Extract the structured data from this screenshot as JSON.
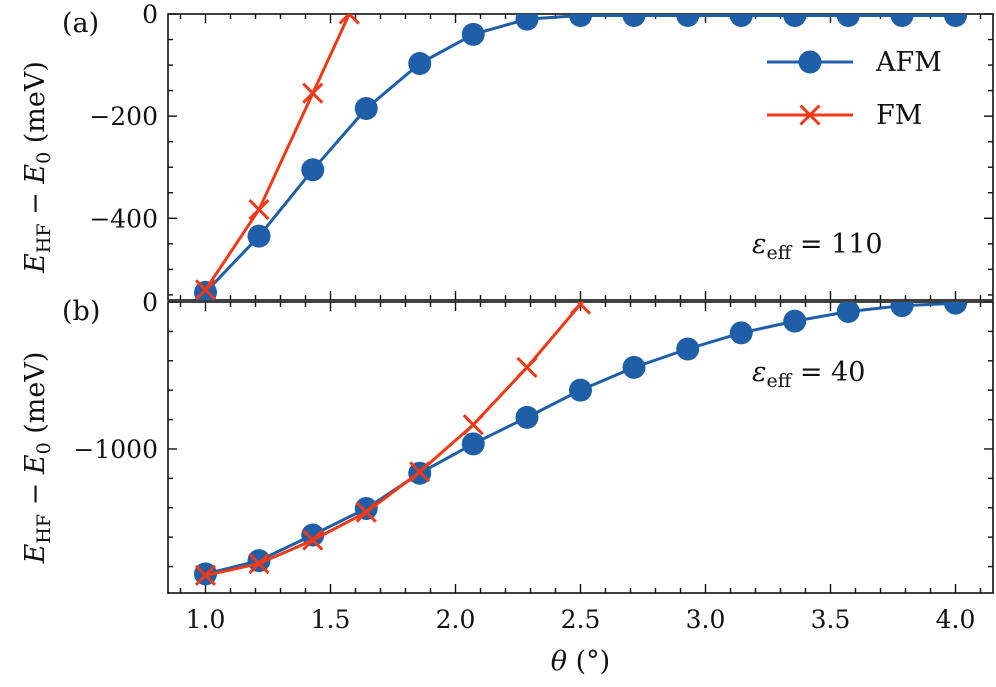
{
  "chart_data": [
    {
      "type": "line",
      "panel_label": "(a)",
      "annotation": {
        "symbol": "ε",
        "sub": "eff",
        "text": " = 110"
      },
      "ylabel": {
        "main": "E",
        "sub": "HF",
        "rest": " − E",
        "sub2": "0",
        "unit": " (meV)"
      },
      "xlim": [
        0.85,
        4.15
      ],
      "ylim": [
        -560,
        0
      ],
      "yticks": [
        0,
        -200,
        -400
      ],
      "ytick_labels": [
        "0",
        "−200",
        "−400"
      ],
      "legend": {
        "location": "top-right",
        "entries": [
          "AFM",
          "FM"
        ]
      },
      "series": [
        {
          "name": "AFM",
          "color": "#1f5fa8",
          "marker": "circle",
          "x": [
            1.0,
            1.214,
            1.429,
            1.643,
            1.857,
            2.071,
            2.286,
            2.5,
            2.714,
            2.929,
            3.143,
            3.357,
            3.571,
            3.786,
            4.0
          ],
          "y": [
            -545,
            -435,
            -305,
            -185,
            -97,
            -40,
            -10,
            -3,
            -3,
            -3,
            -3,
            -3,
            -3,
            -3,
            -3
          ]
        },
        {
          "name": "FM",
          "color": "#f03a17",
          "marker": "x",
          "x": [
            1.0,
            1.214,
            1.429,
            1.575
          ],
          "y": [
            -540,
            -383,
            -155,
            0
          ]
        }
      ]
    },
    {
      "type": "line",
      "panel_label": "(b)",
      "annotation": {
        "symbol": "ε",
        "sub": "eff",
        "text": " = 40"
      },
      "ylabel": {
        "main": "E",
        "sub": "HF",
        "rest": " − E",
        "sub2": "0",
        "unit": " (meV)"
      },
      "xlim": [
        0.85,
        4.15
      ],
      "ylim": [
        -1980,
        0
      ],
      "yticks": [
        0,
        -1000
      ],
      "ytick_labels": [
        "0",
        "−1000"
      ],
      "xlabel": {
        "main": "θ",
        "unit": " (°)"
      },
      "xticks": [
        1.0,
        1.5,
        2.0,
        2.5,
        3.0,
        3.5,
        4.0
      ],
      "xtick_labels": [
        "1.0",
        "1.5",
        "2.0",
        "2.5",
        "3.0",
        "3.5",
        "4.0"
      ],
      "series": [
        {
          "name": "AFM",
          "color": "#1f5fa8",
          "marker": "circle",
          "x": [
            1.0,
            1.214,
            1.429,
            1.643,
            1.857,
            2.071,
            2.286,
            2.5,
            2.714,
            2.929,
            3.143,
            3.357,
            3.571,
            3.786,
            4.0
          ],
          "y": [
            -1850,
            -1760,
            -1585,
            -1405,
            -1165,
            -965,
            -785,
            -600,
            -445,
            -320,
            -210,
            -130,
            -65,
            -25,
            -8
          ]
        },
        {
          "name": "FM",
          "color": "#f03a17",
          "marker": "x",
          "x": [
            1.0,
            1.214,
            1.429,
            1.643,
            1.857,
            2.071,
            2.286,
            2.5
          ],
          "y": [
            -1860,
            -1780,
            -1620,
            -1430,
            -1155,
            -835,
            -445,
            -15
          ]
        }
      ]
    }
  ]
}
